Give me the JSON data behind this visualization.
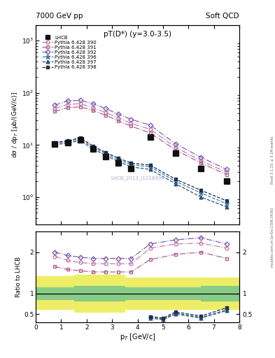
{
  "title_top": "7000 GeV pp",
  "title_right": "Soft QCD",
  "subtitle": "pT(D*) (y=3.0-3.5)",
  "watermark": "LHCB_2013_I1218996",
  "right_label": "mcplots.cern.ch [arXiv:1306.3436]",
  "rivet_label": "Rivet 3.1.10; ≥ 3.1M events",
  "xlabel": "p$_{T}$ [GeV/c]",
  "ylabel": "dσ / dp$_{T}$ [μb/(GeV/c)]",
  "ratio_ylabel": "Ratio to LHCB",
  "xlim": [
    0,
    8
  ],
  "ylim_log": [
    0.3,
    2000
  ],
  "ratio_ylim": [
    0.3,
    2.5
  ],
  "lhcb_x": [
    0.75,
    1.25,
    1.75,
    2.25,
    2.75,
    3.25,
    3.75,
    4.5,
    5.5,
    6.5,
    7.5
  ],
  "lhcb_y": [
    10.5,
    11.0,
    12.5,
    8.5,
    6.0,
    4.5,
    3.5,
    14.0,
    7.0,
    3.5,
    2.0
  ],
  "lhcb_color": "#111111",
  "series": [
    {
      "label": "Pythia 6.428 390",
      "x": [
        0.75,
        1.25,
        1.75,
        2.25,
        2.75,
        3.25,
        3.75,
        4.5,
        5.5,
        6.5,
        7.5
      ],
      "y": [
        50,
        60,
        62,
        52,
        42,
        33,
        26,
        20,
        9.0,
        5.0,
        3.0
      ],
      "color": "#c080b0",
      "marker": "o",
      "linestyle": "-.",
      "linewidth": 0.9,
      "markersize": 3.5,
      "fillstyle": "none"
    },
    {
      "label": "Pythia 6.428 391",
      "x": [
        0.75,
        1.25,
        1.75,
        2.25,
        2.75,
        3.25,
        3.75,
        4.5,
        5.5,
        6.5,
        7.5
      ],
      "y": [
        44,
        52,
        54,
        46,
        37,
        29,
        23,
        17,
        8.0,
        4.5,
        2.7
      ],
      "color": "#b06090",
      "marker": "s",
      "linestyle": "-.",
      "linewidth": 0.9,
      "markersize": 3.5,
      "fillstyle": "none"
    },
    {
      "label": "Pythia 6.428 392",
      "x": [
        0.75,
        1.25,
        1.75,
        2.25,
        2.75,
        3.25,
        3.75,
        4.5,
        5.5,
        6.5,
        7.5
      ],
      "y": [
        58,
        70,
        72,
        62,
        50,
        39,
        31,
        24,
        10.5,
        5.8,
        3.4
      ],
      "color": "#8060b0",
      "marker": "D",
      "linestyle": "-.",
      "linewidth": 0.9,
      "markersize": 3.5,
      "fillstyle": "none"
    },
    {
      "label": "Pythia 6.428 396",
      "x": [
        0.75,
        1.25,
        1.75,
        2.25,
        2.75,
        3.25,
        3.75,
        4.5,
        5.5,
        6.5,
        7.5
      ],
      "y": [
        10.8,
        11.5,
        13.0,
        9.0,
        6.8,
        5.2,
        4.2,
        3.8,
        2.0,
        1.2,
        0.75
      ],
      "color": "#4080a0",
      "marker": "*",
      "linestyle": "--",
      "linewidth": 0.9,
      "markersize": 5,
      "fillstyle": "full"
    },
    {
      "label": "Pythia 6.428 397",
      "x": [
        0.75,
        1.25,
        1.75,
        2.25,
        2.75,
        3.25,
        3.75,
        4.5,
        5.5,
        6.5,
        7.5
      ],
      "y": [
        10.2,
        10.8,
        12.2,
        8.4,
        6.3,
        4.8,
        3.8,
        3.4,
        1.8,
        1.0,
        0.65
      ],
      "color": "#305080",
      "marker": "^",
      "linestyle": "--",
      "linewidth": 0.9,
      "markersize": 3.5,
      "fillstyle": "full"
    },
    {
      "label": "Pythia 6.428 398",
      "x": [
        0.75,
        1.25,
        1.75,
        2.25,
        2.75,
        3.25,
        3.75,
        4.5,
        5.5,
        6.5,
        7.5
      ],
      "y": [
        11.2,
        12.0,
        13.8,
        9.6,
        7.2,
        5.6,
        4.5,
        4.1,
        2.2,
        1.35,
        0.85
      ],
      "color": "#203050",
      "marker": "s",
      "linestyle": "--",
      "linewidth": 0.9,
      "markersize": 3.5,
      "fillstyle": "full"
    }
  ],
  "ratio_series": [
    {
      "label": "Pythia 6.428 390",
      "x": [
        0.75,
        1.25,
        1.75,
        2.25,
        2.75,
        3.25,
        3.75,
        4.5,
        5.5,
        6.5,
        7.5
      ],
      "y": [
        1.9,
        1.8,
        1.75,
        1.72,
        1.72,
        1.72,
        1.72,
        2.1,
        2.2,
        2.22,
        2.1
      ],
      "color": "#c080b0",
      "marker": "o",
      "linestyle": "-.",
      "fillstyle": "none",
      "markersize": 3.5,
      "linewidth": 0.9
    },
    {
      "label": "Pythia 6.428 391",
      "x": [
        0.75,
        1.25,
        1.75,
        2.25,
        2.75,
        3.25,
        3.75,
        4.5,
        5.5,
        6.5,
        7.5
      ],
      "y": [
        1.65,
        1.58,
        1.55,
        1.52,
        1.52,
        1.52,
        1.52,
        1.82,
        1.95,
        2.0,
        1.85
      ],
      "color": "#b06090",
      "marker": "s",
      "linestyle": "-.",
      "fillstyle": "none",
      "markersize": 3.5,
      "linewidth": 0.9
    },
    {
      "label": "Pythia 6.428 392",
      "x": [
        0.75,
        1.25,
        1.75,
        2.25,
        2.75,
        3.25,
        3.75,
        4.5,
        5.5,
        6.5,
        7.5
      ],
      "y": [
        2.0,
        1.92,
        1.88,
        1.85,
        1.85,
        1.85,
        1.85,
        2.2,
        2.3,
        2.35,
        2.2
      ],
      "color": "#8060b0",
      "marker": "D",
      "linestyle": "-.",
      "fillstyle": "none",
      "markersize": 3.5,
      "linewidth": 0.9
    },
    {
      "label": "Pythia 6.428 396",
      "x": [
        4.5,
        5.0,
        5.5,
        6.5,
        7.5
      ],
      "y": [
        0.42,
        0.38,
        0.52,
        0.42,
        0.6
      ],
      "color": "#4080a0",
      "marker": "*",
      "linestyle": "--",
      "fillstyle": "full",
      "markersize": 5,
      "linewidth": 0.9
    },
    {
      "label": "Pythia 6.428 397",
      "x": [
        4.5,
        5.0,
        5.5,
        6.5,
        7.5
      ],
      "y": [
        0.4,
        0.36,
        0.5,
        0.4,
        0.58
      ],
      "color": "#305080",
      "marker": "^",
      "linestyle": "--",
      "fillstyle": "full",
      "markersize": 3.5,
      "linewidth": 0.9
    },
    {
      "label": "Pythia 6.428 398",
      "x": [
        4.5,
        5.0,
        5.5,
        6.5,
        7.5
      ],
      "y": [
        0.44,
        0.4,
        0.55,
        0.45,
        0.65
      ],
      "color": "#203050",
      "marker": "s",
      "linestyle": "--",
      "fillstyle": "full",
      "markersize": 3.5,
      "linewidth": 0.9
    }
  ],
  "yellow_band": {
    "x": [
      0.0,
      1.5,
      1.5,
      3.5,
      3.5,
      6.5,
      6.5,
      8.5
    ],
    "low": [
      0.62,
      0.62,
      0.55,
      0.55,
      0.62,
      0.62,
      0.62,
      0.62
    ],
    "high": [
      1.42,
      1.42,
      1.45,
      1.45,
      1.38,
      1.38,
      1.38,
      1.38
    ]
  },
  "green_band": {
    "x": [
      0.0,
      1.5,
      1.5,
      3.5,
      3.5,
      6.5,
      6.5,
      8.5
    ],
    "low": [
      0.85,
      0.85,
      0.82,
      0.82,
      0.85,
      0.85,
      0.82,
      0.82
    ],
    "high": [
      1.15,
      1.15,
      1.18,
      1.18,
      1.15,
      1.15,
      1.18,
      1.18
    ]
  }
}
